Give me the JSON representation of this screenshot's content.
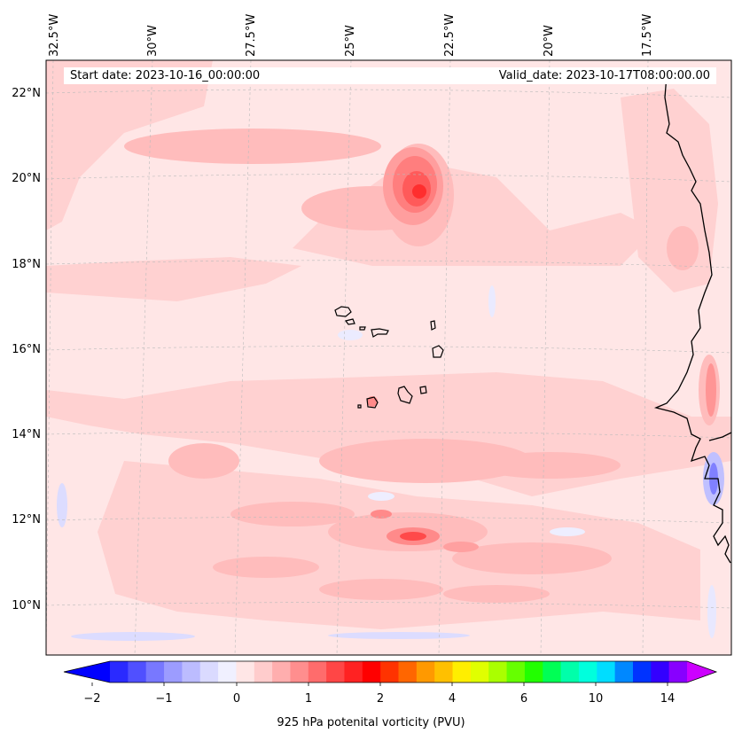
{
  "map": {
    "start_date": "Start date: 2023-10-16_00:00:00",
    "valid_date": "Valid_date: 2023-10-17T08:00:00.00",
    "lon_labels": [
      "32.5°W",
      "30°W",
      "27.5°W",
      "25°W",
      "22.5°W",
      "20°W",
      "17.5°W"
    ],
    "lat_labels": [
      "22°N",
      "20°N",
      "18°N",
      "16°N",
      "14°N",
      "12°N",
      "10°N"
    ],
    "background_color": "#ffe6e6",
    "land_outline_color": "#000000"
  },
  "colorbar": {
    "label": "925 hPa potenital vorticity (PVU)",
    "ticks": [
      "−2",
      "−1",
      "0",
      "1",
      "2",
      "4",
      "6",
      "10",
      "14"
    ],
    "colors": [
      "#0000ff",
      "#2a2aff",
      "#5050ff",
      "#7878ff",
      "#9c9cff",
      "#bcbcff",
      "#dadaff",
      "#f0f0ff",
      "#ffe6e6",
      "#ffcccc",
      "#ffaeae",
      "#ff8e8e",
      "#ff6c6c",
      "#ff4646",
      "#ff2222",
      "#ff0000",
      "#ff3300",
      "#ff6600",
      "#ff9900",
      "#ffc000",
      "#ffee00",
      "#e0ff00",
      "#aaff00",
      "#66ff00",
      "#22ff00",
      "#00ff55",
      "#00ffaa",
      "#00ffdd",
      "#00ddff",
      "#0088ff",
      "#0033ff",
      "#3300ff",
      "#8800ff",
      "#cc00ff"
    ]
  }
}
